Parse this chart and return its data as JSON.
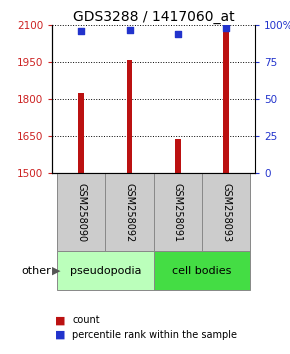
{
  "title": "GDS3288 / 1417060_at",
  "samples": [
    "GSM258090",
    "GSM258092",
    "GSM258091",
    "GSM258093"
  ],
  "counts": [
    1825,
    1957,
    1638,
    2088
  ],
  "percentiles": [
    95.5,
    96.5,
    94.0,
    97.5
  ],
  "ylim_left": [
    1500,
    2100
  ],
  "ylim_right": [
    0,
    100
  ],
  "yticks_left": [
    1500,
    1650,
    1800,
    1950,
    2100
  ],
  "yticks_right": [
    0,
    25,
    50,
    75,
    100
  ],
  "ytick_labels_right": [
    "0",
    "25",
    "50",
    "75",
    "100%"
  ],
  "bar_color": "#bb1111",
  "marker_color": "#2233cc",
  "groups": [
    {
      "label": "pseudopodia",
      "indices": [
        0,
        1
      ],
      "facecolor": "#bbffbb",
      "edgecolor": "#888888"
    },
    {
      "label": "cell bodies",
      "indices": [
        2,
        3
      ],
      "facecolor": "#44dd44",
      "edgecolor": "#888888"
    }
  ],
  "label_box_color": "#cccccc",
  "label_box_edgecolor": "#888888",
  "other_label": "other",
  "legend_count_label": "count",
  "legend_percentile_label": "percentile rank within the sample",
  "bar_width": 0.12,
  "title_fontsize": 10,
  "tick_fontsize": 7.5,
  "sample_fontsize": 7,
  "group_fontsize": 8,
  "legend_fontsize": 7,
  "left_tick_color": "#cc2222",
  "right_tick_color": "#2233cc"
}
